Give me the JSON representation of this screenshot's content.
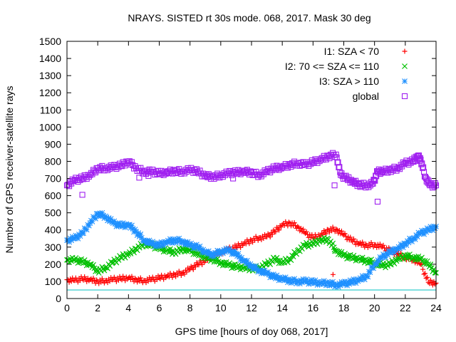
{
  "chart_data": {
    "type": "scatter",
    "title": "NRAYS. SISTED rt 30s mode. 068, 2017. Mask 30 deg",
    "xlabel": "GPS time [hours of doy 068, 2017]",
    "ylabel": "Number of GPS receiver-satellite rays",
    "xlim": [
      0,
      24
    ],
    "ylim": [
      0,
      1500
    ],
    "xticks": [
      "0",
      "2",
      "4",
      "6",
      "8",
      "10",
      "12",
      "14",
      "16",
      "18",
      "20",
      "22",
      "24"
    ],
    "yticks": [
      "0",
      "100",
      "200",
      "300",
      "400",
      "500",
      "600",
      "700",
      "800",
      "900",
      "1000",
      "1100",
      "1200",
      "1300",
      "1400",
      "1500"
    ],
    "legend_position": "top-right",
    "reference_line": {
      "y": 50,
      "color": "#00c0c0"
    },
    "series": [
      {
        "name": "I1: SZA < 70",
        "marker": "plus",
        "color": "#ff0000",
        "x": [
          0,
          0.5,
          1,
          1.5,
          2,
          2.5,
          3,
          3.5,
          4,
          4.5,
          5,
          5.5,
          6,
          6.5,
          7,
          7.5,
          8,
          8.5,
          9,
          9.5,
          10,
          10.5,
          11,
          11.5,
          12,
          12.5,
          13,
          13.5,
          14,
          14.5,
          15,
          15.5,
          16,
          16.5,
          17,
          17.5,
          18,
          18.5,
          19,
          19.5,
          20,
          20.5,
          21,
          21.5,
          22,
          22.5,
          23,
          23.5,
          24
        ],
        "y": [
          110,
          105,
          115,
          110,
          100,
          105,
          110,
          115,
          120,
          110,
          105,
          110,
          120,
          130,
          140,
          150,
          170,
          200,
          220,
          250,
          270,
          285,
          300,
          320,
          340,
          355,
          360,
          390,
          430,
          440,
          420,
          380,
          355,
          370,
          400,
          405,
          370,
          340,
          320,
          310,
          315,
          300,
          280,
          260,
          240,
          230,
          200,
          95,
          90
        ]
      },
      {
        "name": "I2: 70 <= SZA <= 110",
        "marker": "cross",
        "color": "#00c000",
        "x": [
          0,
          0.5,
          1,
          1.5,
          2,
          2.5,
          3,
          3.5,
          4,
          4.5,
          5,
          5.5,
          6,
          6.5,
          7,
          7.5,
          8,
          8.5,
          9,
          9.5,
          10,
          10.5,
          11,
          11.5,
          12,
          12.5,
          13,
          13.5,
          14,
          14.5,
          15,
          15.5,
          16,
          16.5,
          17,
          17.5,
          18,
          18.5,
          19,
          19.5,
          20,
          20.5,
          21,
          21.5,
          22,
          22.5,
          23,
          23.5,
          24
        ],
        "y": [
          225,
          225,
          215,
          200,
          160,
          180,
          210,
          240,
          260,
          290,
          320,
          310,
          295,
          280,
          270,
          290,
          280,
          260,
          240,
          230,
          210,
          195,
          185,
          180,
          175,
          180,
          200,
          230,
          210,
          230,
          280,
          310,
          320,
          340,
          345,
          280,
          250,
          240,
          230,
          220,
          210,
          190,
          200,
          230,
          250,
          240,
          230,
          200,
          150
        ]
      },
      {
        "name": "I3: SZA > 110",
        "marker": "star",
        "color": "#1e90ff",
        "x": [
          0,
          0.5,
          1,
          1.5,
          2,
          2.5,
          3,
          3.5,
          4,
          4.5,
          5,
          5.5,
          6,
          6.5,
          7,
          7.5,
          8,
          8.5,
          9,
          9.5,
          10,
          10.5,
          11,
          11.5,
          12,
          12.5,
          13,
          13.5,
          14,
          14.5,
          15,
          15.5,
          16,
          16.5,
          17,
          17.5,
          18,
          18.5,
          19,
          19.5,
          20,
          20.5,
          21,
          21.5,
          22,
          22.5,
          23,
          23.5,
          24
        ],
        "y": [
          340,
          350,
          380,
          440,
          495,
          480,
          440,
          425,
          430,
          390,
          340,
          320,
          310,
          330,
          340,
          335,
          310,
          300,
          270,
          255,
          275,
          280,
          260,
          220,
          190,
          165,
          145,
          125,
          115,
          105,
          100,
          100,
          95,
          90,
          90,
          80,
          85,
          95,
          110,
          130,
          200,
          240,
          270,
          290,
          320,
          350,
          380,
          400,
          420
        ]
      },
      {
        "name": "global",
        "marker": "square",
        "color": "#a020f0",
        "x": [
          0,
          0.5,
          1,
          1.5,
          2,
          2.5,
          3,
          3.5,
          4,
          4.5,
          5,
          5.5,
          6,
          6.5,
          7,
          7.5,
          8,
          8.5,
          9,
          9.5,
          10,
          10.5,
          11,
          11.5,
          12,
          12.5,
          13,
          13.5,
          14,
          14.5,
          15,
          15.5,
          16,
          16.5,
          17,
          17.5,
          17.8,
          18.2,
          18.6,
          19,
          19.5,
          19.9,
          20.2,
          20.5,
          21,
          21.5,
          22,
          22.5,
          22.8,
          23,
          23.3,
          23.6,
          24
        ],
        "y": [
          660,
          690,
          700,
          720,
          760,
          760,
          765,
          775,
          800,
          760,
          740,
          740,
          730,
          735,
          745,
          740,
          750,
          740,
          715,
          710,
          720,
          730,
          735,
          740,
          735,
          720,
          740,
          760,
          765,
          780,
          790,
          780,
          795,
          810,
          830,
          840,
          720,
          700,
          680,
          665,
          660,
          670,
          740,
          740,
          750,
          760,
          790,
          800,
          830,
          810,
          710,
          660,
          660
        ]
      }
    ],
    "outliers": [
      {
        "x": 1,
        "y": 605,
        "series": "global"
      },
      {
        "x": 4.7,
        "y": 705,
        "series": "global"
      },
      {
        "x": 5.3,
        "y": 715,
        "series": "global"
      },
      {
        "x": 10.8,
        "y": 700,
        "series": "global"
      },
      {
        "x": 17.4,
        "y": 660,
        "series": "global"
      },
      {
        "x": 20.2,
        "y": 565,
        "series": "global"
      },
      {
        "x": 17.4,
        "y": 285,
        "series": "I2: 70 <= SZA <= 110"
      },
      {
        "x": 17.3,
        "y": 140,
        "series": "I1: SZA < 70"
      }
    ]
  }
}
